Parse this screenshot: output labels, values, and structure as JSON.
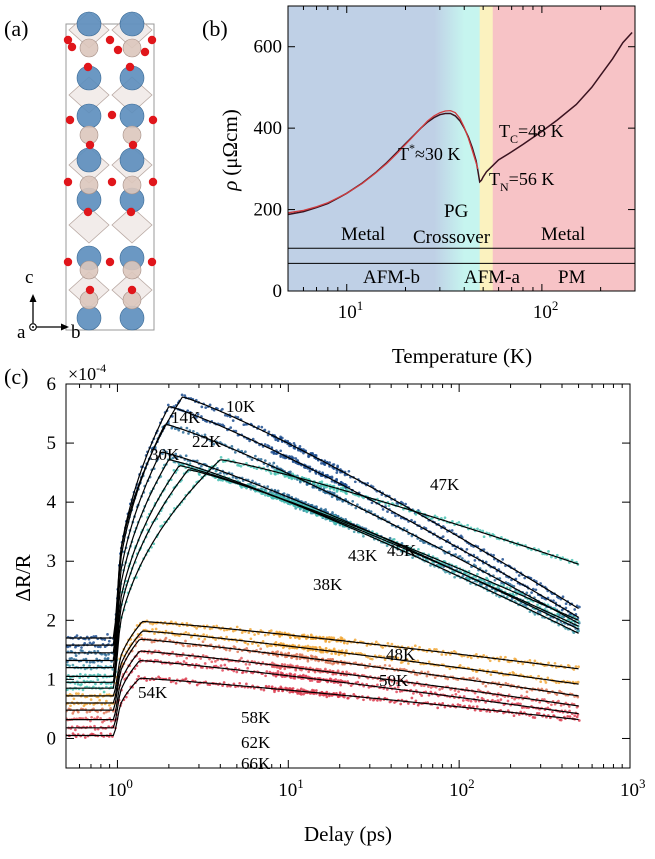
{
  "panels": {
    "a": {
      "label": "(a)",
      "axes": {
        "c": "c",
        "a": "a",
        "b": "b"
      },
      "colors": {
        "large_atom": "#5b8dbd",
        "small_atom": "#dcc7bd",
        "oxygen": "#e0161b",
        "frame": "#999999"
      }
    },
    "b": {
      "label": "(b)"
    },
    "c": {
      "label": "(c)"
    }
  },
  "chart_data": [
    {
      "type": "line",
      "panel": "b",
      "ylabel_symbol": "ρ",
      "ylabel_unit": "(μΩcm)",
      "xlabel": "Temperature (K)",
      "x_scale": "log",
      "xlim": [
        5,
        300
      ],
      "ylim": [
        0,
        700
      ],
      "x_ticks": [
        10,
        100
      ],
      "x_tick_base": "10",
      "x_tick_exps": [
        "1",
        "2"
      ],
      "y_ticks": [
        0,
        200,
        400,
        600
      ],
      "y_tick_labels": [
        "0",
        "200",
        "400",
        "600"
      ],
      "grid": false,
      "regions": [
        {
          "from": 5,
          "to": 28,
          "color": "#bfd0e6"
        },
        {
          "from": 28,
          "to": 40,
          "gradient": [
            "#bfd0e6",
            "#c6f5ef"
          ]
        },
        {
          "from": 40,
          "to": 48,
          "color": "#c6f5ef"
        },
        {
          "from": 48,
          "to": 56,
          "color": "#fbf2bf"
        },
        {
          "from": 56,
          "to": 300,
          "color": "#f7c3c6"
        }
      ],
      "hlines": [
        105,
        68
      ],
      "series": [
        {
          "color": "#3a1320",
          "x": [
            5,
            6,
            7,
            8,
            9,
            10,
            12,
            14,
            16,
            18,
            20,
            22,
            24,
            26,
            28,
            30,
            32,
            34,
            36,
            38,
            40,
            42,
            44,
            46,
            47,
            48,
            49,
            50,
            52,
            56,
            60,
            70,
            80,
            100,
            120,
            150,
            180,
            200,
            230,
            260,
            290
          ],
          "y": [
            188,
            195,
            205,
            215,
            228,
            240,
            265,
            290,
            315,
            340,
            362,
            382,
            400,
            415,
            426,
            433,
            436,
            436,
            430,
            418,
            400,
            378,
            352,
            320,
            295,
            268,
            272,
            280,
            293,
            308,
            322,
            342,
            360,
            392,
            420,
            458,
            500,
            530,
            570,
            610,
            635
          ]
        },
        {
          "color": "#d13b3e",
          "x": [
            5,
            6,
            7,
            8,
            9,
            10,
            12,
            14,
            16,
            18,
            20,
            22,
            24,
            26,
            28,
            30,
            32,
            34,
            36,
            38,
            40,
            42,
            44,
            46,
            47
          ],
          "y": [
            192,
            198,
            207,
            217,
            229,
            240,
            264,
            289,
            313,
            337,
            360,
            381,
            400,
            418,
            430,
            438,
            442,
            443,
            438,
            424,
            402,
            375,
            345,
            315,
            300
          ]
        }
      ],
      "annotations": {
        "tstar_pre": "T",
        "tstar_sup": "*",
        "tstar_post": "≈30 K",
        "tc_pre": "T",
        "tc_sub": "C",
        "tc_post": "=48 K",
        "tn_pre": "T",
        "tn_sub": "N",
        "tn_post": "=56 K",
        "metal_left": "Metal",
        "pg": "PG",
        "crossover": "Crossover",
        "metal_right": "Metal",
        "afm_b": "AFM-b",
        "afm_a": "AFM-a",
        "pm": "PM"
      }
    },
    {
      "type": "scatter",
      "panel": "c",
      "ylabel": "ΔR/R",
      "xlabel": "Delay (ps)",
      "x_scale": "log",
      "xlim": [
        0.5,
        1000
      ],
      "ylim": [
        -0.5,
        6
      ],
      "y_multiplier_base": "×10",
      "y_multiplier_exp": "-4",
      "x_ticks": [
        1,
        10,
        100,
        1000
      ],
      "x_tick_base": "10",
      "x_tick_exps": [
        "0",
        "1",
        "2",
        "3"
      ],
      "y_ticks": [
        0,
        1,
        2,
        3,
        4,
        5,
        6
      ],
      "y_tick_labels": [
        "0",
        "1",
        "2",
        "3",
        "4",
        "5",
        "6"
      ],
      "grid": false,
      "fit_color": "#000000",
      "series": [
        {
          "name": "10K",
          "color": "#1d4e8f",
          "base": 1.7,
          "peak": 5.78,
          "tpeak": 2.4,
          "end": 2.2
        },
        {
          "name": "14K",
          "color": "#1d4e8f",
          "base": 1.58,
          "peak": 5.62,
          "tpeak": 2.0,
          "end": 2.05
        },
        {
          "name": "22K",
          "color": "#2a6a96",
          "base": 1.45,
          "peak": 5.32,
          "tpeak": 1.9,
          "end": 1.95
        },
        {
          "name": "30K",
          "color": "#2a6a96",
          "base": 1.32,
          "peak": 4.85,
          "tpeak": 1.8,
          "end": 1.85
        },
        {
          "name": "38K",
          "color": "#3f9aa8",
          "base": 1.2,
          "peak": 4.72,
          "tpeak": 2.0,
          "end": 1.78
        },
        {
          "name": "43K",
          "color": "#47bdb4",
          "base": 1.05,
          "peak": 4.62,
          "tpeak": 2.3,
          "end": 1.9
        },
        {
          "name": "45K",
          "color": "#47bdb4",
          "base": 0.95,
          "peak": 4.55,
          "tpeak": 2.6,
          "end": 2.0
        },
        {
          "name": "47K",
          "color": "#4cc5b5",
          "base": 0.85,
          "peak": 4.72,
          "tpeak": 4.0,
          "end": 2.95
        },
        {
          "name": "48K",
          "color": "#f2a93b",
          "base": 0.72,
          "peak": 1.98,
          "tpeak": 1.4,
          "end": 1.18
        },
        {
          "name": "50K",
          "color": "#f2a93b",
          "base": 0.6,
          "peak": 1.82,
          "tpeak": 1.4,
          "end": 0.92
        },
        {
          "name": "54K",
          "color": "#e07a5a",
          "base": 0.48,
          "peak": 1.68,
          "tpeak": 1.35,
          "end": 0.72
        },
        {
          "name": "58K",
          "color": "#e45a62",
          "base": 0.32,
          "peak": 1.48,
          "tpeak": 1.35,
          "end": 0.55
        },
        {
          "name": "62K",
          "color": "#e2475a",
          "base": 0.18,
          "peak": 1.32,
          "tpeak": 1.35,
          "end": 0.42
        },
        {
          "name": "66K",
          "color": "#dc3b4e",
          "base": 0.05,
          "peak": 1.02,
          "tpeak": 1.35,
          "end": 0.32
        }
      ]
    }
  ]
}
